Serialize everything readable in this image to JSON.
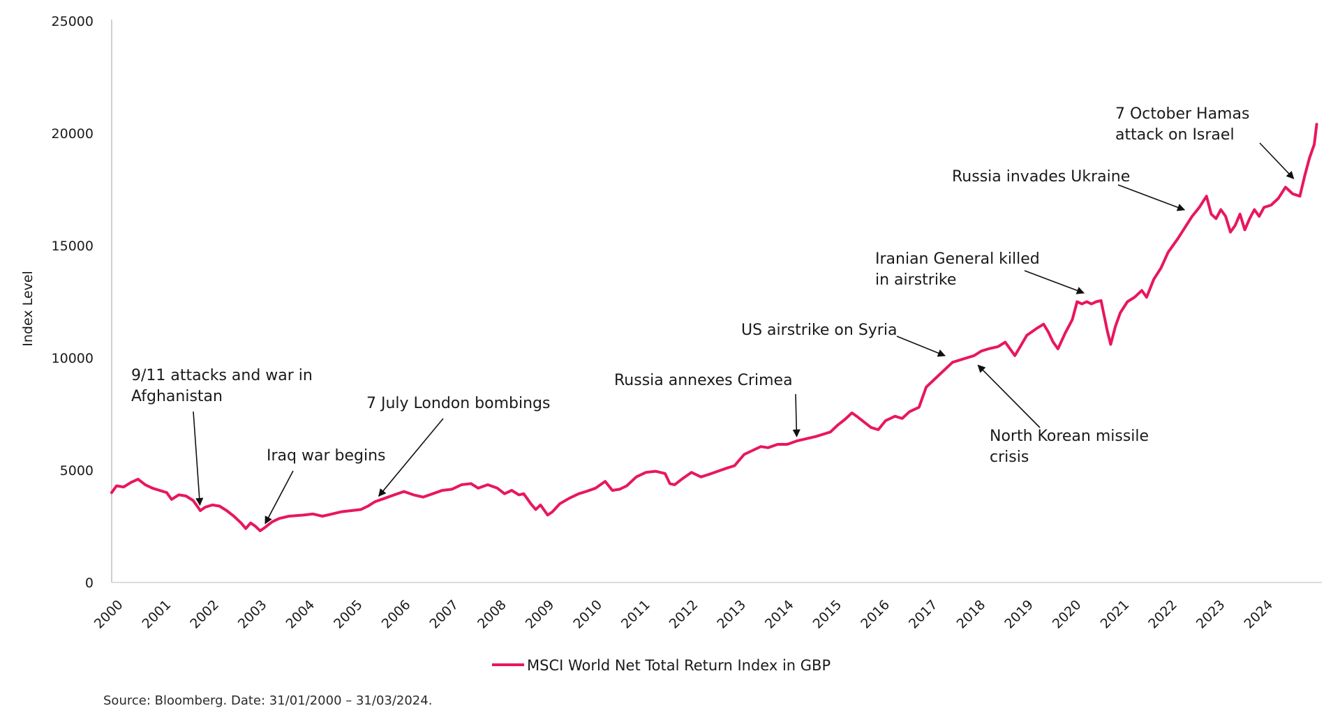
{
  "chart_data": {
    "type": "line",
    "ylabel": "Index Level",
    "ylim": [
      0,
      25000
    ],
    "y_ticks": [
      0,
      5000,
      10000,
      15000,
      20000,
      25000
    ],
    "x_ticks": [
      "2000",
      "2001",
      "2002",
      "2003",
      "2004",
      "2005",
      "2006",
      "2007",
      "2008",
      "2009",
      "2010",
      "2011",
      "2012",
      "2013",
      "2014",
      "2015",
      "2016",
      "2017",
      "2018",
      "2019",
      "2020",
      "2021",
      "2022",
      "2023",
      "2024"
    ],
    "grid": false,
    "legend_position": "bottom-center",
    "line_color": "#e8175d",
    "series": [
      {
        "name": "MSCI World Net Total Return Index in GBP",
        "points": [
          [
            2000.0,
            4000
          ],
          [
            2000.1,
            4300
          ],
          [
            2000.25,
            4250
          ],
          [
            2000.4,
            4450
          ],
          [
            2000.55,
            4600
          ],
          [
            2000.7,
            4350
          ],
          [
            2000.85,
            4200
          ],
          [
            2001.0,
            4100
          ],
          [
            2001.15,
            4000
          ],
          [
            2001.25,
            3700
          ],
          [
            2001.4,
            3900
          ],
          [
            2001.55,
            3850
          ],
          [
            2001.7,
            3650
          ],
          [
            2001.8,
            3350
          ],
          [
            2001.85,
            3200
          ],
          [
            2001.95,
            3350
          ],
          [
            2002.1,
            3450
          ],
          [
            2002.25,
            3400
          ],
          [
            2002.4,
            3200
          ],
          [
            2002.55,
            2950
          ],
          [
            2002.7,
            2650
          ],
          [
            2002.8,
            2400
          ],
          [
            2002.9,
            2650
          ],
          [
            2003.0,
            2500
          ],
          [
            2003.1,
            2300
          ],
          [
            2003.2,
            2450
          ],
          [
            2003.35,
            2700
          ],
          [
            2003.5,
            2850
          ],
          [
            2003.7,
            2950
          ],
          [
            2004.0,
            3000
          ],
          [
            2004.2,
            3050
          ],
          [
            2004.4,
            2950
          ],
          [
            2004.6,
            3050
          ],
          [
            2004.8,
            3150
          ],
          [
            2005.0,
            3200
          ],
          [
            2005.2,
            3250
          ],
          [
            2005.35,
            3400
          ],
          [
            2005.5,
            3600
          ],
          [
            2005.7,
            3750
          ],
          [
            2005.9,
            3900
          ],
          [
            2006.1,
            4050
          ],
          [
            2006.3,
            3900
          ],
          [
            2006.5,
            3800
          ],
          [
            2006.7,
            3950
          ],
          [
            2006.9,
            4100
          ],
          [
            2007.1,
            4150
          ],
          [
            2007.3,
            4350
          ],
          [
            2007.5,
            4400
          ],
          [
            2007.65,
            4200
          ],
          [
            2007.85,
            4350
          ],
          [
            2008.05,
            4200
          ],
          [
            2008.2,
            3950
          ],
          [
            2008.35,
            4100
          ],
          [
            2008.5,
            3900
          ],
          [
            2008.6,
            3950
          ],
          [
            2008.75,
            3500
          ],
          [
            2008.85,
            3250
          ],
          [
            2008.95,
            3450
          ],
          [
            2009.1,
            3000
          ],
          [
            2009.2,
            3150
          ],
          [
            2009.35,
            3500
          ],
          [
            2009.55,
            3750
          ],
          [
            2009.75,
            3950
          ],
          [
            2009.9,
            4050
          ],
          [
            2010.1,
            4200
          ],
          [
            2010.3,
            4500
          ],
          [
            2010.45,
            4100
          ],
          [
            2010.6,
            4150
          ],
          [
            2010.75,
            4300
          ],
          [
            2010.95,
            4700
          ],
          [
            2011.15,
            4900
          ],
          [
            2011.35,
            4950
          ],
          [
            2011.55,
            4850
          ],
          [
            2011.65,
            4400
          ],
          [
            2011.75,
            4350
          ],
          [
            2011.9,
            4600
          ],
          [
            2012.1,
            4900
          ],
          [
            2012.3,
            4700
          ],
          [
            2012.45,
            4800
          ],
          [
            2012.65,
            4950
          ],
          [
            2012.85,
            5100
          ],
          [
            2013.0,
            5200
          ],
          [
            2013.2,
            5700
          ],
          [
            2013.4,
            5900
          ],
          [
            2013.55,
            6050
          ],
          [
            2013.7,
            6000
          ],
          [
            2013.9,
            6150
          ],
          [
            2014.1,
            6150
          ],
          [
            2014.3,
            6300
          ],
          [
            2014.5,
            6400
          ],
          [
            2014.7,
            6500
          ],
          [
            2014.85,
            6600
          ],
          [
            2015.0,
            6700
          ],
          [
            2015.15,
            7000
          ],
          [
            2015.3,
            7250
          ],
          [
            2015.45,
            7550
          ],
          [
            2015.55,
            7400
          ],
          [
            2015.7,
            7150
          ],
          [
            2015.85,
            6900
          ],
          [
            2016.0,
            6800
          ],
          [
            2016.15,
            7200
          ],
          [
            2016.35,
            7400
          ],
          [
            2016.5,
            7300
          ],
          [
            2016.65,
            7600
          ],
          [
            2016.85,
            7800
          ],
          [
            2017.0,
            8700
          ],
          [
            2017.2,
            9100
          ],
          [
            2017.4,
            9500
          ],
          [
            2017.55,
            9800
          ],
          [
            2017.7,
            9900
          ],
          [
            2017.85,
            10000
          ],
          [
            2018.0,
            10100
          ],
          [
            2018.15,
            10300
          ],
          [
            2018.3,
            10400
          ],
          [
            2018.5,
            10500
          ],
          [
            2018.65,
            10700
          ],
          [
            2018.85,
            10100
          ],
          [
            2018.95,
            10450
          ],
          [
            2019.1,
            11000
          ],
          [
            2019.3,
            11300
          ],
          [
            2019.45,
            11500
          ],
          [
            2019.55,
            11150
          ],
          [
            2019.65,
            10700
          ],
          [
            2019.75,
            10400
          ],
          [
            2019.9,
            11100
          ],
          [
            2020.05,
            11700
          ],
          [
            2020.15,
            12500
          ],
          [
            2020.25,
            12400
          ],
          [
            2020.35,
            12500
          ],
          [
            2020.45,
            12400
          ],
          [
            2020.55,
            12500
          ],
          [
            2020.65,
            12550
          ],
          [
            2020.78,
            11200
          ],
          [
            2020.85,
            10600
          ],
          [
            2020.95,
            11400
          ],
          [
            2021.05,
            12000
          ],
          [
            2021.2,
            12500
          ],
          [
            2021.35,
            12700
          ],
          [
            2021.5,
            13000
          ],
          [
            2021.6,
            12700
          ],
          [
            2021.75,
            13500
          ],
          [
            2021.9,
            14000
          ],
          [
            2022.05,
            14700
          ],
          [
            2022.25,
            15300
          ],
          [
            2022.4,
            15800
          ],
          [
            2022.55,
            16300
          ],
          [
            2022.7,
            16700
          ],
          [
            2022.85,
            17200
          ],
          [
            2022.95,
            16400
          ],
          [
            2023.05,
            16200
          ],
          [
            2023.15,
            16600
          ],
          [
            2023.25,
            16300
          ],
          [
            2023.35,
            15600
          ],
          [
            2023.45,
            15900
          ],
          [
            2023.55,
            16400
          ],
          [
            2023.65,
            15700
          ],
          [
            2023.75,
            16200
          ],
          [
            2023.85,
            16600
          ],
          [
            2023.95,
            16300
          ],
          [
            2024.05,
            16700
          ],
          [
            2024.2,
            16800
          ],
          [
            2024.35,
            17100
          ],
          [
            2024.5,
            17600
          ],
          [
            2024.65,
            17300
          ],
          [
            2024.8,
            17200
          ],
          [
            2024.9,
            18100
          ],
          [
            2025.0,
            18900
          ],
          [
            2025.1,
            19500
          ],
          [
            2025.15,
            20400
          ]
        ]
      }
    ],
    "annotations": [
      {
        "lines": [
          "9/11 attacks and war in",
          "Afghanistan"
        ],
        "target_x": 2001.85,
        "target_y": 3200
      },
      {
        "lines": [
          "Iraq war begins"
        ],
        "target_x": 2003.15,
        "target_y": 2400
      },
      {
        "lines": [
          "7 July London bombings"
        ],
        "target_x": 2005.5,
        "target_y": 3650
      },
      {
        "lines": [
          "Russia annexes Crimea"
        ],
        "target_x": 2014.3,
        "target_y": 6250
      },
      {
        "lines": [
          "US airstrike on Syria"
        ],
        "target_x": 2017.5,
        "target_y": 10000
      },
      {
        "lines": [
          "North Korean missile",
          "crisis"
        ],
        "target_x": 2018.0,
        "target_y": 9850
      },
      {
        "lines": [
          "Iranian General killed",
          "in airstrike"
        ],
        "target_x": 2020.4,
        "target_y": 12800
      },
      {
        "lines": [
          "Russia invades Ukraine"
        ],
        "target_x": 2022.5,
        "target_y": 16500
      },
      {
        "lines": [
          "7 October Hamas",
          "attack on Israel"
        ],
        "target_x": 2024.75,
        "target_y": 17800
      }
    ],
    "source": "Source: Bloomberg. Date: 31/01/2000 – 31/03/2024."
  }
}
